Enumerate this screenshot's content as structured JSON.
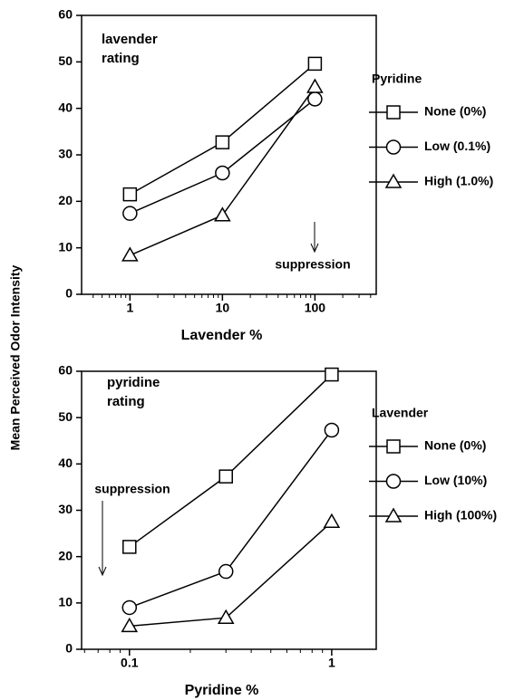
{
  "chart_data": [
    {
      "type": "line",
      "xlabel": "Lavender %",
      "ylabel": "Mean Perceived Odor Intensity",
      "annotation": [
        "lavender",
        "rating"
      ],
      "arrow_label": "suppression",
      "xscale": "log",
      "xlim": [
        0.3,
        460
      ],
      "xticks": [
        1,
        10,
        100
      ],
      "minor_ticks": true,
      "ylim": [
        0,
        60
      ],
      "yticks": [
        0,
        10,
        20,
        30,
        40,
        50,
        60
      ],
      "x": [
        1,
        10,
        100
      ],
      "legend": {
        "title": "Pyridine",
        "position": "right"
      },
      "series": [
        {
          "name": "None (0%)",
          "marker": "square",
          "color": "#000000",
          "values": [
            21.5,
            32.7,
            49.6
          ]
        },
        {
          "name": "Low (0.1%)",
          "marker": "circle",
          "color": "#000000",
          "values": [
            17.4,
            26.1,
            42
          ]
        },
        {
          "name": "High (1.0%)",
          "marker": "triangle",
          "color": "#000000",
          "values": [
            8.4,
            17,
            44.6
          ]
        }
      ]
    },
    {
      "type": "line",
      "xlabel": "Pyridine %",
      "annotation": [
        "pyridine",
        "rating"
      ],
      "arrow_label": "suppression",
      "xscale": "log",
      "xlim": [
        0.058,
        1.66
      ],
      "xticks": [
        0.1,
        1
      ],
      "minor_ticks": true,
      "ylim": [
        0,
        60
      ],
      "yticks": [
        0,
        10,
        20,
        30,
        40,
        50,
        60
      ],
      "x": [
        0.1,
        0.3,
        1
      ],
      "legend": {
        "title": "Lavender",
        "position": "right"
      },
      "series": [
        {
          "name": "None (0%)",
          "marker": "square",
          "color": "#000000",
          "values": [
            22.1,
            37.3,
            59.3
          ]
        },
        {
          "name": "Low (10%)",
          "marker": "circle",
          "color": "#000000",
          "values": [
            9,
            16.8,
            47.3
          ]
        },
        {
          "name": "High (100%)",
          "marker": "triangle",
          "color": "#000000",
          "values": [
            5,
            6.8,
            27.5
          ]
        }
      ]
    }
  ]
}
